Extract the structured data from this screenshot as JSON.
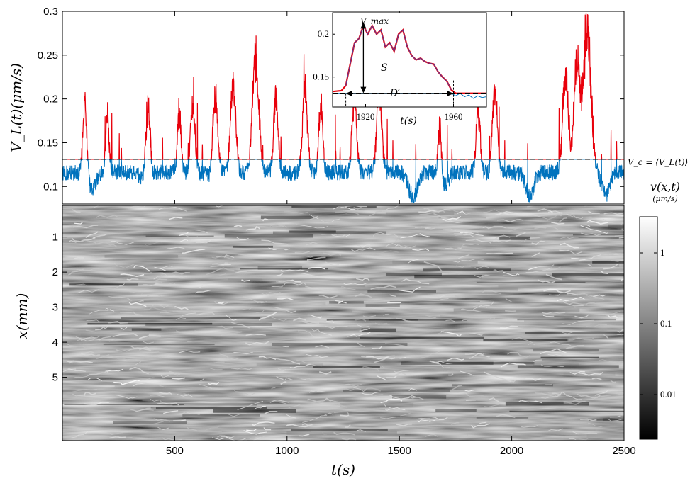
{
  "chart_data": [
    {
      "type": "line",
      "ylabel": "V_L(t)(μm/s)",
      "xlim": [
        0,
        2500
      ],
      "ylim": [
        0.08,
        0.3
      ],
      "yticks": [
        "0.1",
        "0.15",
        "0.2",
        "0.25",
        "0.3"
      ],
      "threshold": {
        "value": 0.131,
        "label": "V_c = ⟨V_L(t)⟩"
      },
      "series": [
        {
          "color": "#e8000b",
          "description": "values above V_c"
        },
        {
          "color": "#0072bd",
          "description": "values below V_c"
        }
      ],
      "peaks": [
        {
          "t": 100,
          "v": 0.205
        },
        {
          "t": 200,
          "v": 0.19
        },
        {
          "t": 380,
          "v": 0.215
        },
        {
          "t": 520,
          "v": 0.195
        },
        {
          "t": 580,
          "v": 0.21
        },
        {
          "t": 680,
          "v": 0.22
        },
        {
          "t": 760,
          "v": 0.23
        },
        {
          "t": 860,
          "v": 0.26
        },
        {
          "t": 950,
          "v": 0.21
        },
        {
          "t": 1080,
          "v": 0.225
        },
        {
          "t": 1150,
          "v": 0.2
        },
        {
          "t": 1300,
          "v": 0.215
        },
        {
          "t": 1410,
          "v": 0.225
        },
        {
          "t": 1680,
          "v": 0.185
        },
        {
          "t": 1850,
          "v": 0.2
        },
        {
          "t": 1925,
          "v": 0.22
        },
        {
          "t": 2240,
          "v": 0.245
        },
        {
          "t": 2290,
          "v": 0.25
        },
        {
          "t": 2335,
          "v": 0.3
        }
      ],
      "troughs": [
        {
          "t": 130,
          "v": 0.095
        },
        {
          "t": 370,
          "v": 0.1
        },
        {
          "t": 660,
          "v": 0.11
        },
        {
          "t": 1010,
          "v": 0.115
        },
        {
          "t": 1560,
          "v": 0.085
        },
        {
          "t": 1700,
          "v": 0.1
        },
        {
          "t": 2080,
          "v": 0.09
        },
        {
          "t": 2420,
          "v": 0.09
        }
      ]
    },
    {
      "type": "line",
      "inset": true,
      "xlim": [
        1905,
        1975
      ],
      "ylim": [
        0.115,
        0.225
      ],
      "xticks": [
        "1920",
        "1960"
      ],
      "yticks": [
        "0.15",
        "0.2"
      ],
      "xlabel": "t(s)",
      "threshold": 0.131,
      "annotations": {
        "vmax": "V_max",
        "area": "S",
        "duration": "D′"
      },
      "points": [
        [
          1905,
          0.133
        ],
        [
          1909,
          0.134
        ],
        [
          1911,
          0.14
        ],
        [
          1913,
          0.165
        ],
        [
          1915,
          0.19
        ],
        [
          1917,
          0.195
        ],
        [
          1919,
          0.21
        ],
        [
          1921,
          0.2
        ],
        [
          1923,
          0.21
        ],
        [
          1925,
          0.2
        ],
        [
          1927,
          0.205
        ],
        [
          1929,
          0.185
        ],
        [
          1931,
          0.19
        ],
        [
          1933,
          0.18
        ],
        [
          1935,
          0.2
        ],
        [
          1937,
          0.205
        ],
        [
          1939,
          0.185
        ],
        [
          1941,
          0.175
        ],
        [
          1943,
          0.17
        ],
        [
          1945,
          0.172
        ],
        [
          1947,
          0.168
        ],
        [
          1949,
          0.166
        ],
        [
          1951,
          0.165
        ],
        [
          1953,
          0.156
        ],
        [
          1955,
          0.15
        ],
        [
          1957,
          0.145
        ],
        [
          1959,
          0.135
        ],
        [
          1961,
          0.128
        ],
        [
          1963,
          0.131
        ],
        [
          1965,
          0.127
        ],
        [
          1967,
          0.129
        ],
        [
          1969,
          0.125
        ],
        [
          1971,
          0.128
        ],
        [
          1973,
          0.126
        ],
        [
          1975,
          0.127
        ]
      ]
    },
    {
      "type": "heatmap",
      "xlabel": "t(s)",
      "ylabel": "x(mm)",
      "xlim": [
        0,
        2500
      ],
      "xticks": [
        "500",
        "1000",
        "1500",
        "2000",
        "2500"
      ],
      "yticks": [
        "1",
        "2",
        "3",
        "4",
        "5"
      ],
      "colorbar": {
        "title": "v(x,t)",
        "unit": "(μm/s)",
        "scale": "log",
        "ticks": [
          "1",
          "0.1",
          "0.01"
        ],
        "colors": [
          "#000000",
          "#ffffff"
        ]
      }
    }
  ]
}
